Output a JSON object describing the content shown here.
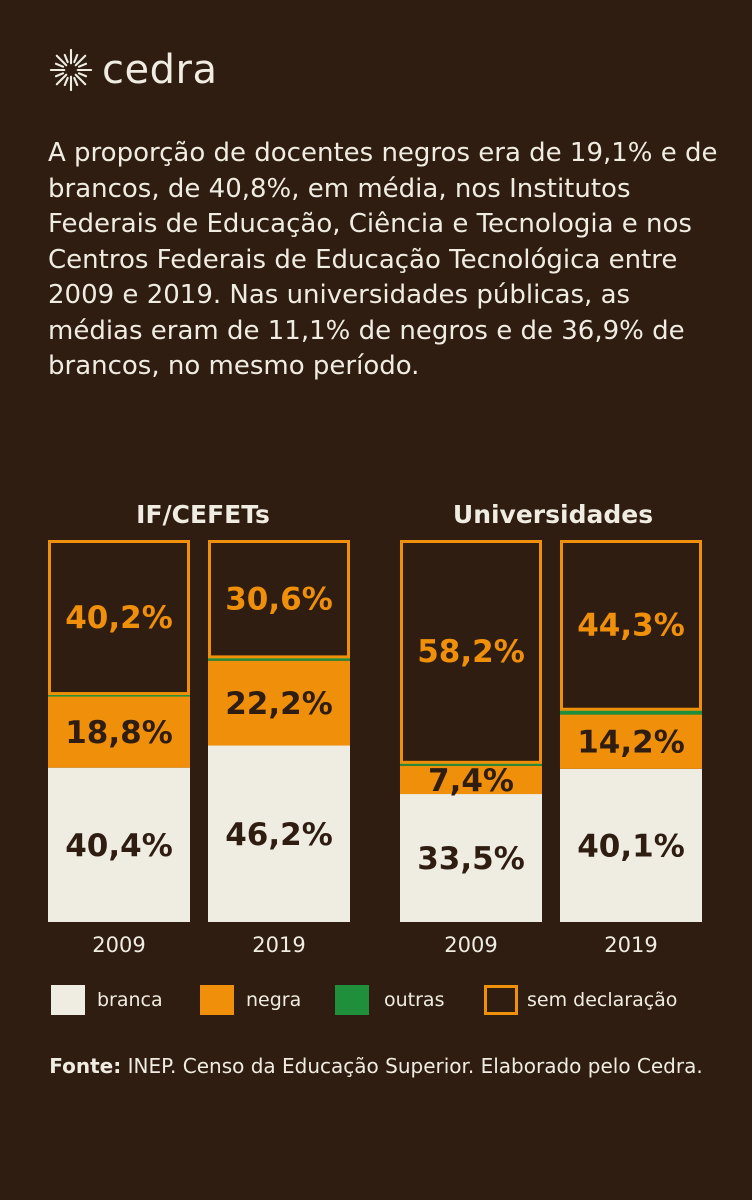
{
  "brand": {
    "name": "cedra",
    "icon": "sun-burst-icon"
  },
  "intro": "A proporção de docentes negros era de 19,1% e de brancos, de 40,8%, em média, nos Institutos Federais de Educação, Ciência e Tecnologia e nos Centros Federais de Educação Tecnológica entre 2009 e 2019. Nas universidades públicas, as médias eram de 11,1% de negros e de 36,9% de brancos, no mesmo período.",
  "colors": {
    "background": "#2e1d10",
    "branca": "#efece2",
    "negra": "#f0900a",
    "outras": "#1f8f3c",
    "sem_declaracao": "#f0900a",
    "text_light": "#f0ece2",
    "text_dark": "#2e1d10"
  },
  "chart_data": {
    "type": "bar",
    "stacked": true,
    "groups": [
      {
        "title": "IF/CEFETs",
        "bars": [
          {
            "year": "2009",
            "branca": 40.4,
            "negra": 18.8,
            "outras": 0.6,
            "sem_declaracao": 40.2,
            "labels": {
              "branca": "40,4%",
              "negra": "18,8%",
              "sem_declaracao": "40,2%"
            }
          },
          {
            "year": "2019",
            "branca": 46.2,
            "negra": 22.2,
            "outras": 1.0,
            "sem_declaracao": 30.6,
            "labels": {
              "branca": "46,2%",
              "negra": "22,2%",
              "sem_declaracao": "30,6%"
            }
          }
        ]
      },
      {
        "title": "Universidades",
        "bars": [
          {
            "year": "2009",
            "branca": 33.5,
            "negra": 7.4,
            "outras": 0.9,
            "sem_declaracao": 58.2,
            "labels": {
              "branca": "33,5%",
              "negra": "7,4%",
              "sem_declaracao": "58,2%"
            }
          },
          {
            "year": "2019",
            "branca": 40.1,
            "negra": 14.2,
            "outras": 1.4,
            "sem_declaracao": 44.3,
            "labels": {
              "branca": "40,1%",
              "negra": "14,2%",
              "sem_declaracao": "44,3%"
            }
          }
        ]
      }
    ],
    "legend": [
      {
        "key": "branca",
        "label": "branca"
      },
      {
        "key": "negra",
        "label": "negra"
      },
      {
        "key": "outras",
        "label": "outras"
      },
      {
        "key": "sem_declaracao",
        "label": "sem declaração"
      }
    ],
    "ylim": [
      0,
      100
    ]
  },
  "source": {
    "label": "Fonte:",
    "text": " INEP. Censo da Educação Superior. Elaborado pelo Cedra."
  }
}
